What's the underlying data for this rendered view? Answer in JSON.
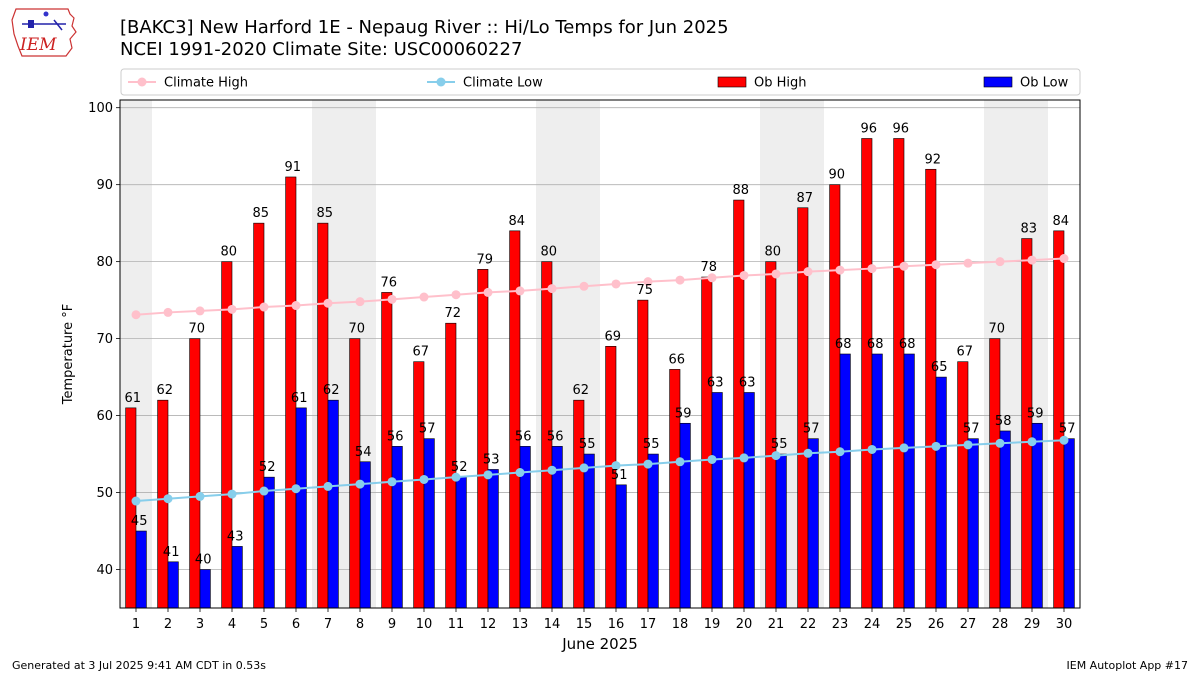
{
  "header": {
    "title_line1": "[BAKC3] New Harford 1E - Nepaug River :: Hi/Lo Temps for Jun 2025",
    "title_line2": "NCEI 1991-2020 Climate Site: USC00060227",
    "logo_text": "IEM"
  },
  "footer": {
    "generated": "Generated at 3 Jul 2025 9:41 AM CDT in 0.53s",
    "app": "IEM Autoplot App #17"
  },
  "colors": {
    "ob_high": "#ff0000",
    "ob_low": "#0000ff",
    "climate_high": "#ffc0cb",
    "climate_low": "#87ceeb",
    "weekend_band": "#eeeeee",
    "grid": "#b0b0b0"
  },
  "chart_data": {
    "type": "bar",
    "xlabel": "June 2025",
    "ylabel": "Temperature °F",
    "ylim": [
      35,
      101
    ],
    "yticks": [
      40,
      50,
      60,
      70,
      80,
      90,
      100
    ],
    "grid": "horizontal",
    "legend_position": "top",
    "categories": [
      1,
      2,
      3,
      4,
      5,
      6,
      7,
      8,
      9,
      10,
      11,
      12,
      13,
      14,
      15,
      16,
      17,
      18,
      19,
      20,
      21,
      22,
      23,
      24,
      25,
      26,
      27,
      28,
      29,
      30
    ],
    "weekend_day_pairs": [
      [
        1,
        1
      ],
      [
        7,
        8
      ],
      [
        14,
        15
      ],
      [
        21,
        22
      ],
      [
        28,
        29
      ]
    ],
    "series": [
      {
        "name": "Ob High",
        "kind": "bar",
        "values": [
          61,
          62,
          70,
          80,
          85,
          91,
          85,
          70,
          76,
          67,
          72,
          79,
          84,
          80,
          62,
          69,
          75,
          66,
          78,
          88,
          80,
          87,
          90,
          96,
          96,
          92,
          67,
          70,
          83,
          84
        ]
      },
      {
        "name": "Ob Low",
        "kind": "bar",
        "values": [
          45,
          41,
          40,
          43,
          52,
          61,
          62,
          54,
          56,
          57,
          52,
          53,
          56,
          56,
          55,
          51,
          55,
          59,
          63,
          63,
          55,
          57,
          68,
          68,
          68,
          65,
          57,
          58,
          59,
          57
        ]
      },
      {
        "name": "Climate High",
        "kind": "line",
        "values": [
          73.1,
          73.4,
          73.6,
          73.8,
          74.1,
          74.3,
          74.6,
          74.8,
          75.1,
          75.4,
          75.7,
          76.0,
          76.2,
          76.5,
          76.8,
          77.1,
          77.4,
          77.6,
          77.9,
          78.2,
          78.4,
          78.7,
          78.9,
          79.1,
          79.4,
          79.6,
          79.8,
          80.0,
          80.2,
          80.4
        ]
      },
      {
        "name": "Climate Low",
        "kind": "line",
        "values": [
          48.9,
          49.2,
          49.5,
          49.8,
          50.2,
          50.5,
          50.8,
          51.1,
          51.4,
          51.7,
          52.0,
          52.3,
          52.6,
          52.9,
          53.2,
          53.5,
          53.7,
          54.0,
          54.3,
          54.5,
          54.8,
          55.1,
          55.3,
          55.6,
          55.8,
          56.0,
          56.2,
          56.4,
          56.6,
          56.8
        ]
      }
    ]
  }
}
